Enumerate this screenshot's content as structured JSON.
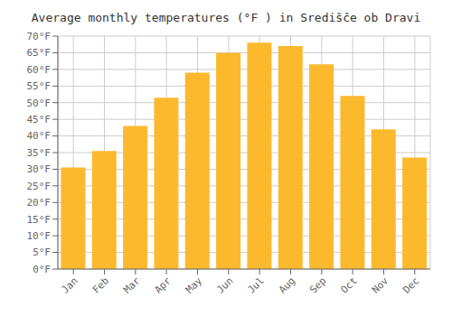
{
  "chart_data": {
    "type": "bar",
    "title": "Average monthly temperatures (°F ) in Središče ob Dravi",
    "categories": [
      "Jan",
      "Feb",
      "Mar",
      "Apr",
      "May",
      "Jun",
      "Jul",
      "Aug",
      "Sep",
      "Oct",
      "Nov",
      "Dec"
    ],
    "values": [
      30.5,
      35.5,
      43.0,
      51.5,
      59.0,
      65.0,
      68.0,
      67.0,
      61.5,
      52.0,
      42.0,
      33.5
    ],
    "color": "#FDB92E",
    "ylim": [
      0,
      70
    ],
    "yticks": [
      {
        "value": 0,
        "label": "0°F"
      },
      {
        "value": 5,
        "label": "5°F"
      },
      {
        "value": 10,
        "label": "10°F"
      },
      {
        "value": 15,
        "label": "15°F"
      },
      {
        "value": 20,
        "label": "20°F"
      },
      {
        "value": 25,
        "label": "25°F"
      },
      {
        "value": 30,
        "label": "30°F"
      },
      {
        "value": 35,
        "label": "35°F"
      },
      {
        "value": 40,
        "label": "40°F"
      },
      {
        "value": 45,
        "label": "45°F"
      },
      {
        "value": 50,
        "label": "50°F"
      },
      {
        "value": 55,
        "label": "55°F"
      },
      {
        "value": 60,
        "label": "60°F"
      },
      {
        "value": 65,
        "label": "65°F"
      },
      {
        "value": 70,
        "label": "70°F"
      }
    ],
    "grid": true
  }
}
